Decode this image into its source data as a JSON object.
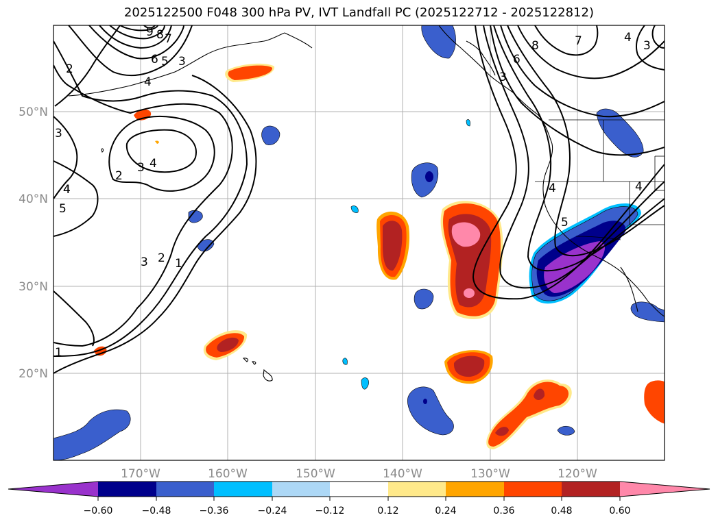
{
  "title": "2025122500 F048 300 hPa PV, IVT Landfall PC (2025122712 - 2025122812)",
  "map": {
    "lon_labels": [
      "170°W",
      "160°W",
      "150°W",
      "140°W",
      "130°W",
      "120°W"
    ],
    "lat_labels": [
      "50°N",
      "40°N",
      "30°N",
      "20°N"
    ],
    "contour_labels": [
      "9",
      "8",
      "7",
      "6",
      "5",
      "3",
      "4",
      "2",
      "3",
      "4",
      "3",
      "4",
      "2",
      "4",
      "5",
      "3",
      "2",
      "1",
      "1",
      "6",
      "8",
      "7",
      "4",
      "3",
      "4",
      "5",
      "4",
      "3"
    ]
  },
  "colorbar": {
    "ticks": [
      "−0.60",
      "−0.48",
      "−0.36",
      "−0.24",
      "−0.12",
      "0.12",
      "0.24",
      "0.36",
      "0.48",
      "0.60"
    ],
    "colors": [
      "#9932cc",
      "#00008b",
      "#3a5fcd",
      "#00bfff",
      "#add8f6",
      "#ffffff",
      "#ffe98a",
      "#ffa500",
      "#ff4500",
      "#b22222",
      "#ff88aa",
      "#ff88aa"
    ]
  }
}
